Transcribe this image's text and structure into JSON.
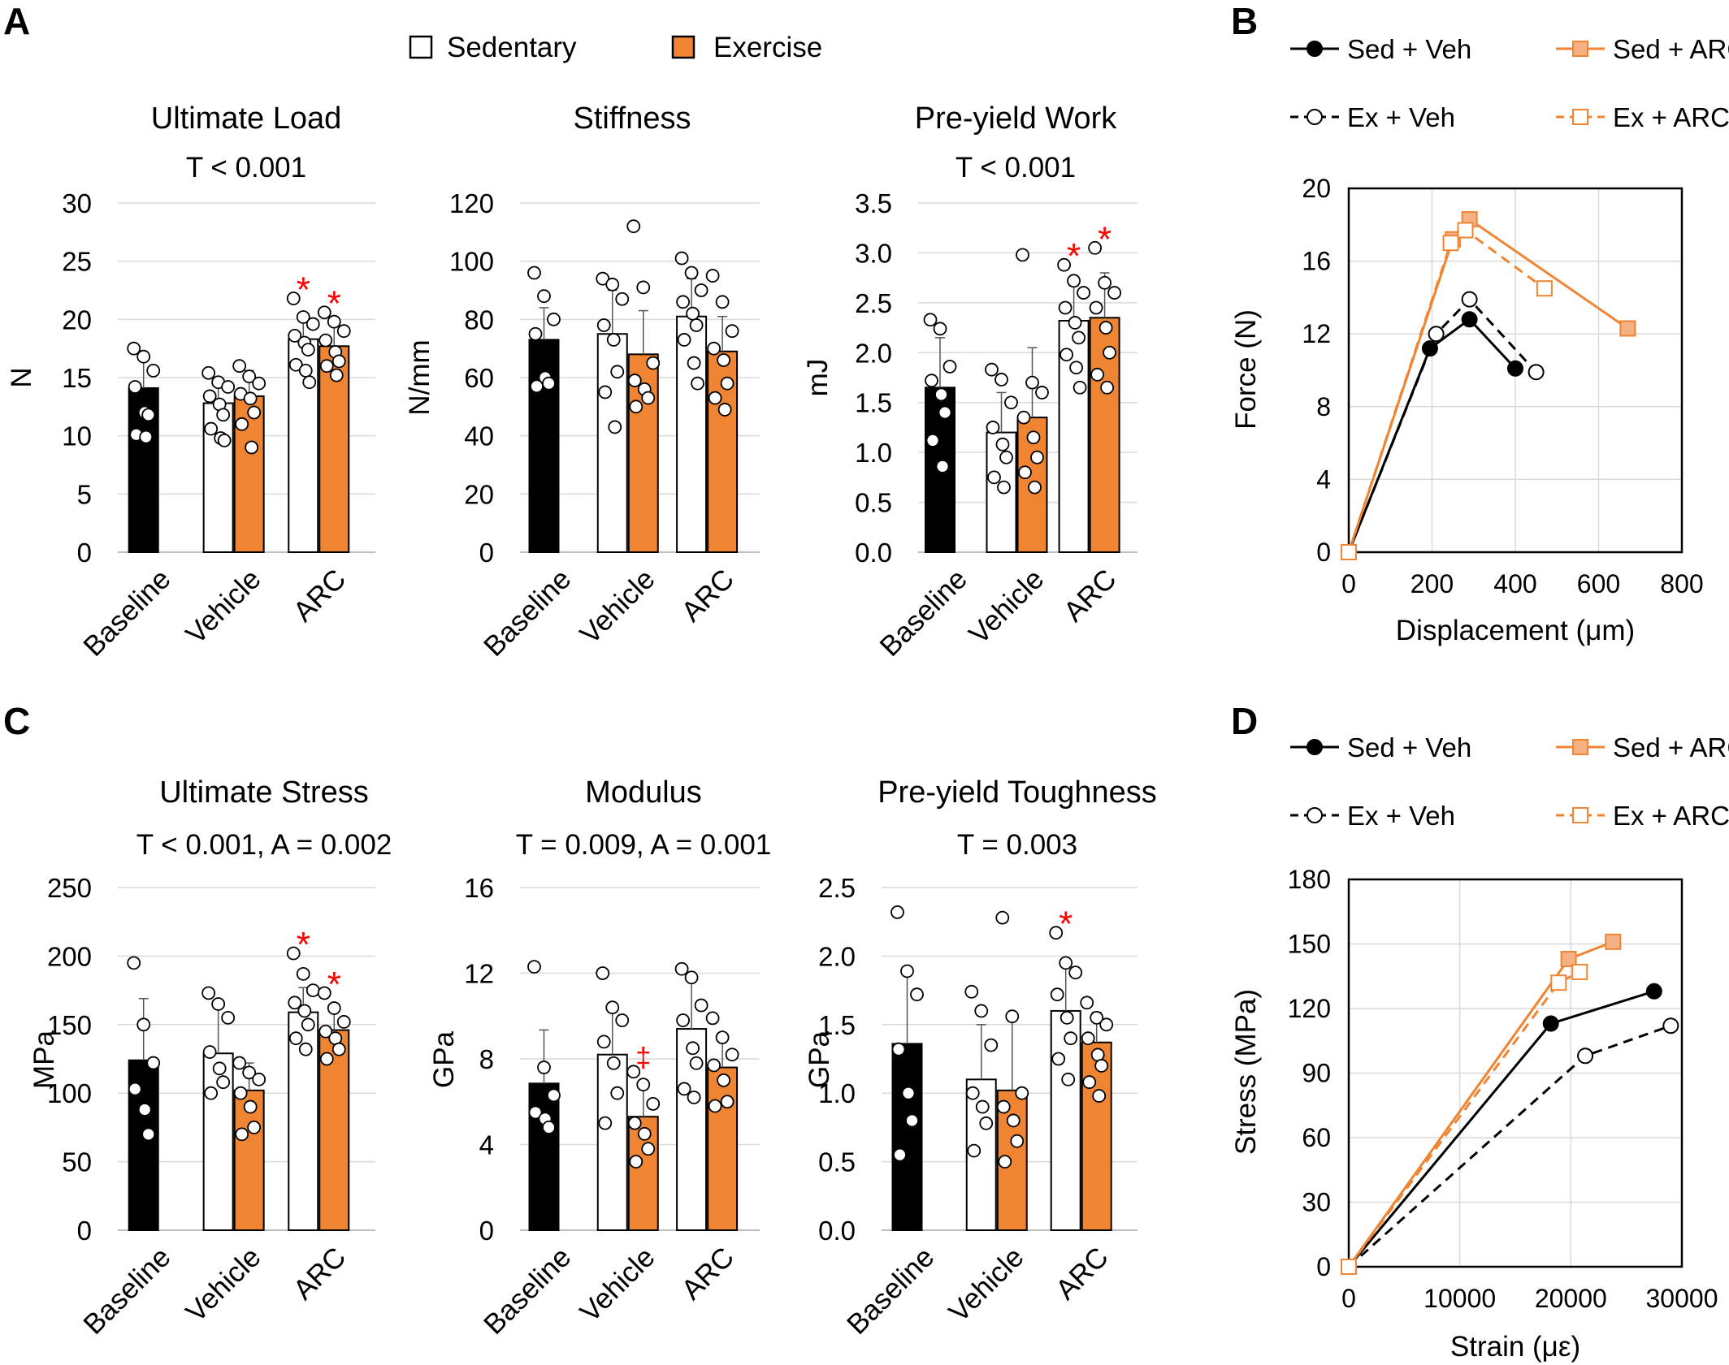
{
  "colors": {
    "baseline": "#000000",
    "sedentary": "#ffffff",
    "exercise": "#ef8532",
    "sig": "#ff0000",
    "grid": "#d9d9d9",
    "axis": "#bfbfbf",
    "line_orange": "#ef8532",
    "fill_orange_light": "#f5b183"
  },
  "legend_main": {
    "sedentary": "Sedentary",
    "exercise": "Exercise"
  },
  "panel_letters": {
    "a": "A",
    "b": "B",
    "c": "C",
    "d": "D"
  },
  "chart_data": [
    {
      "panel": "A",
      "type": "bar",
      "title": "Ultimate Load",
      "stat": "T < 0.001",
      "ylabel": "N",
      "ylim": [
        0,
        30
      ],
      "ticks": [
        "0",
        "5",
        "10",
        "15",
        "20",
        "25",
        "30"
      ],
      "categories": [
        "Baseline",
        "Vehicle",
        "ARC"
      ],
      "bars": [
        {
          "group": "Baseline",
          "series": "Baseline",
          "value": 14.1,
          "sd": 2.6,
          "points": [
            17.5,
            16.8,
            15.6,
            14.2,
            12.0,
            11.8,
            10.1,
            9.9
          ]
        },
        {
          "group": "Vehicle",
          "series": "Sedentary",
          "value": 12.8,
          "sd": 2.0,
          "points": [
            15.4,
            14.6,
            14.2,
            13.4,
            12.7,
            11.8,
            10.6,
            9.8,
            9.6
          ]
        },
        {
          "group": "Vehicle",
          "series": "Exercise",
          "value": 13.4,
          "sd": 2.2,
          "points": [
            16.0,
            15.1,
            14.5,
            13.6,
            13.2,
            12.0,
            11.0,
            9.0
          ]
        },
        {
          "group": "ARC",
          "series": "Sedentary",
          "value": 18.3,
          "sd": 2.0,
          "points": [
            21.8,
            20.2,
            19.6,
            18.6,
            18.0,
            17.4,
            16.1,
            15.6,
            14.6
          ],
          "sig": "*"
        },
        {
          "group": "ARC",
          "series": "Exercise",
          "value": 17.7,
          "sd": 1.8,
          "points": [
            20.6,
            19.8,
            19.0,
            18.2,
            17.2,
            16.4,
            16.0,
            15.2
          ],
          "sig": "*"
        }
      ]
    },
    {
      "panel": "A",
      "type": "bar",
      "title": "Stiffness",
      "stat": "",
      "ylabel": "N/mm",
      "ylim": [
        0,
        120
      ],
      "ticks": [
        "0",
        "20",
        "40",
        "60",
        "80",
        "100",
        "120"
      ],
      "categories": [
        "Baseline",
        "Vehicle",
        "ARC"
      ],
      "bars": [
        {
          "group": "Baseline",
          "series": "Baseline",
          "value": 73,
          "sd": 11,
          "points": [
            96,
            88,
            80,
            75,
            60,
            58,
            57
          ]
        },
        {
          "group": "Vehicle",
          "series": "Sedentary",
          "value": 75,
          "sd": 15,
          "points": [
            94,
            92,
            87,
            78,
            73,
            62,
            55,
            43
          ]
        },
        {
          "group": "Vehicle",
          "series": "Exercise",
          "value": 68,
          "sd": 15,
          "points": [
            112,
            91,
            65,
            59,
            56,
            53,
            50
          ]
        },
        {
          "group": "ARC",
          "series": "Sedentary",
          "value": 81,
          "sd": 13,
          "points": [
            101,
            96,
            90,
            86,
            82,
            78,
            73,
            65,
            58
          ]
        },
        {
          "group": "ARC",
          "series": "Exercise",
          "value": 69,
          "sd": 12,
          "points": [
            95,
            86,
            76,
            70,
            66,
            58,
            53,
            49
          ]
        }
      ]
    },
    {
      "panel": "A",
      "type": "bar",
      "title": "Pre-yield Work",
      "stat": "T < 0.001",
      "ylabel": "mJ",
      "ylim": [
        0,
        3.5
      ],
      "ticks": [
        "0.0",
        "0.5",
        "1.0",
        "1.5",
        "2.0",
        "2.5",
        "3.0",
        "3.5"
      ],
      "categories": [
        "Baseline",
        "Vehicle",
        "ARC"
      ],
      "bars": [
        {
          "group": "Baseline",
          "series": "Baseline",
          "value": 1.65,
          "sd": 0.5,
          "points": [
            2.33,
            2.24,
            1.86,
            1.72,
            1.58,
            1.4,
            1.12,
            0.86
          ]
        },
        {
          "group": "Vehicle",
          "series": "Sedentary",
          "value": 1.2,
          "sd": 0.4,
          "points": [
            1.83,
            1.73,
            1.5,
            1.25,
            1.08,
            0.95,
            0.75,
            0.65
          ]
        },
        {
          "group": "Vehicle",
          "series": "Exercise",
          "value": 1.35,
          "sd": 0.7,
          "points": [
            2.98,
            1.7,
            1.6,
            1.35,
            1.15,
            0.95,
            0.8,
            0.65
          ]
        },
        {
          "group": "ARC",
          "series": "Sedentary",
          "value": 2.32,
          "sd": 0.35,
          "points": [
            2.88,
            2.72,
            2.6,
            2.45,
            2.3,
            2.15,
            1.98,
            1.85,
            1.65
          ],
          "sig": "*"
        },
        {
          "group": "ARC",
          "series": "Exercise",
          "value": 2.35,
          "sd": 0.45,
          "points": [
            3.05,
            2.7,
            2.6,
            2.45,
            2.25,
            2.0,
            1.78,
            1.65
          ],
          "sig": "*"
        }
      ]
    },
    {
      "panel": "B",
      "type": "line",
      "xlabel": "Displacement (μm)",
      "ylabel": "Force (N)",
      "xlim": [
        0,
        800
      ],
      "ylim": [
        0,
        20
      ],
      "xticks": [
        "0",
        "200",
        "400",
        "600",
        "800"
      ],
      "yticks": [
        "0",
        "4",
        "8",
        "12",
        "16",
        "20"
      ],
      "series": [
        {
          "name": "Sed + Veh",
          "style": "solid",
          "marker": "circle",
          "color": "#000000",
          "fill": "#000000",
          "x": [
            0,
            195,
            290,
            400
          ],
          "y": [
            0,
            11.2,
            12.8,
            10.1
          ]
        },
        {
          "name": "Sed + ARC",
          "style": "solid",
          "marker": "square",
          "color": "#ef8532",
          "fill": "#f5b183",
          "x": [
            0,
            250,
            290,
            670
          ],
          "y": [
            0,
            17.2,
            18.3,
            12.3
          ]
        },
        {
          "name": "Ex + Veh",
          "style": "dashed",
          "marker": "circle",
          "color": "#000000",
          "fill": "#ffffff",
          "x": [
            0,
            210,
            290,
            450
          ],
          "y": [
            0,
            12.0,
            13.9,
            9.9
          ]
        },
        {
          "name": "Ex + ARC",
          "style": "dashed",
          "marker": "square",
          "color": "#ef8532",
          "fill": "#ffffff",
          "x": [
            0,
            245,
            280,
            470
          ],
          "y": [
            0,
            17.0,
            17.7,
            14.5
          ]
        }
      ]
    },
    {
      "panel": "C",
      "type": "bar",
      "title": "Ultimate Stress",
      "stat": "T < 0.001, A = 0.002",
      "ylabel": "MPa",
      "ylim": [
        0,
        250
      ],
      "ticks": [
        "0",
        "50",
        "100",
        "150",
        "200",
        "250"
      ],
      "categories": [
        "Baseline",
        "Vehicle",
        "ARC"
      ],
      "bars": [
        {
          "group": "Baseline",
          "series": "Baseline",
          "value": 124,
          "sd": 45,
          "points": [
            195,
            150,
            122,
            103,
            88,
            70
          ]
        },
        {
          "group": "Vehicle",
          "series": "Sedentary",
          "value": 129,
          "sd": 35,
          "points": [
            173,
            165,
            155,
            130,
            118,
            108,
            100
          ]
        },
        {
          "group": "Vehicle",
          "series": "Exercise",
          "value": 102,
          "sd": 20,
          "points": [
            122,
            115,
            110,
            100,
            90,
            75,
            70
          ]
        },
        {
          "group": "ARC",
          "series": "Sedentary",
          "value": 159,
          "sd": 18,
          "points": [
            202,
            187,
            175,
            166,
            160,
            150,
            140,
            132
          ],
          "sig": "*"
        },
        {
          "group": "ARC",
          "series": "Exercise",
          "value": 146,
          "sd": 15,
          "points": [
            173,
            162,
            152,
            145,
            140,
            132,
            125
          ],
          "sig": "*"
        }
      ]
    },
    {
      "panel": "C",
      "type": "bar",
      "title": "Modulus",
      "stat": "T = 0.009, A = 0.001",
      "ylabel": "GPa",
      "ylim": [
        0,
        16
      ],
      "ticks": [
        "0",
        "4",
        "8",
        "12",
        "16"
      ],
      "categories": [
        "Baseline",
        "Vehicle",
        "ARC"
      ],
      "bars": [
        {
          "group": "Baseline",
          "series": "Baseline",
          "value": 6.85,
          "sd": 2.5,
          "points": [
            12.3,
            7.6,
            6.3,
            5.5,
            5.2,
            4.8
          ]
        },
        {
          "group": "Vehicle",
          "series": "Sedentary",
          "value": 8.2,
          "sd": 2.3,
          "points": [
            12.0,
            10.4,
            9.8,
            8.8,
            7.8,
            6.4,
            5.0
          ]
        },
        {
          "group": "Vehicle",
          "series": "Exercise",
          "value": 5.3,
          "sd": 1.6,
          "points": [
            7.4,
            6.8,
            5.9,
            5.0,
            4.5,
            3.8,
            3.2
          ],
          "sig": "‡"
        },
        {
          "group": "ARC",
          "series": "Sedentary",
          "value": 9.4,
          "sd": 2.4,
          "points": [
            12.2,
            11.8,
            10.5,
            9.8,
            8.5,
            7.8,
            6.6,
            6.2
          ]
        },
        {
          "group": "ARC",
          "series": "Exercise",
          "value": 7.6,
          "sd": 1.5,
          "points": [
            9.9,
            9.0,
            8.2,
            7.7,
            7.0,
            6.0,
            5.8
          ]
        }
      ]
    },
    {
      "panel": "C",
      "type": "bar",
      "title": "Pre-yield Toughness",
      "stat": "T = 0.003",
      "ylabel": "GPa",
      "ylim": [
        0,
        2.5
      ],
      "ticks": [
        "0.0",
        "0.5",
        "1.0",
        "1.5",
        "2.0",
        "2.5"
      ],
      "categories": [
        "Baseline",
        "Vehicle",
        "ARC"
      ],
      "bars": [
        {
          "group": "Baseline",
          "series": "Baseline",
          "value": 1.36,
          "sd": 0.55,
          "points": [
            2.32,
            1.89,
            1.72,
            1.32,
            1.0,
            0.8,
            0.55
          ]
        },
        {
          "group": "Vehicle",
          "series": "Sedentary",
          "value": 1.1,
          "sd": 0.4,
          "points": [
            1.74,
            1.6,
            1.35,
            1.0,
            0.9,
            0.78,
            0.58
          ]
        },
        {
          "group": "Vehicle",
          "series": "Exercise",
          "value": 1.02,
          "sd": 0.55,
          "points": [
            2.28,
            1.56,
            1.0,
            0.9,
            0.8,
            0.65,
            0.5
          ]
        },
        {
          "group": "ARC",
          "series": "Sedentary",
          "value": 1.6,
          "sd": 0.35,
          "points": [
            2.17,
            1.95,
            1.88,
            1.72,
            1.55,
            1.4,
            1.25,
            1.1
          ],
          "sig": "*"
        },
        {
          "group": "ARC",
          "series": "Exercise",
          "value": 1.37,
          "sd": 0.22,
          "points": [
            1.66,
            1.55,
            1.5,
            1.4,
            1.28,
            1.2,
            1.08,
            0.98
          ]
        }
      ]
    },
    {
      "panel": "D",
      "type": "line",
      "xlabel": "Strain (με)",
      "ylabel": "Stress (MPa)",
      "xlim": [
        0,
        30000
      ],
      "ylim": [
        0,
        180
      ],
      "xticks": [
        "0",
        "10000",
        "20000",
        "30000"
      ],
      "yticks": [
        "0",
        "30",
        "60",
        "90",
        "120",
        "150",
        "180"
      ],
      "series": [
        {
          "name": "Sed + Veh",
          "style": "solid",
          "marker": "circle",
          "color": "#000000",
          "fill": "#000000",
          "x": [
            0,
            18200,
            27500
          ],
          "y": [
            0,
            113,
            128
          ]
        },
        {
          "name": "Sed + ARC",
          "style": "solid",
          "marker": "square",
          "color": "#ef8532",
          "fill": "#f5b183",
          "x": [
            0,
            19800,
            23800
          ],
          "y": [
            0,
            143,
            151
          ]
        },
        {
          "name": "Ex + Veh",
          "style": "dashed",
          "marker": "circle",
          "color": "#000000",
          "fill": "#ffffff",
          "x": [
            0,
            21300,
            29000
          ],
          "y": [
            0,
            98,
            112
          ]
        },
        {
          "name": "Ex + ARC",
          "style": "dashed",
          "marker": "square",
          "color": "#ef8532",
          "fill": "#ffffff",
          "x": [
            0,
            18900,
            20800
          ],
          "y": [
            0,
            132,
            137
          ]
        }
      ]
    }
  ]
}
